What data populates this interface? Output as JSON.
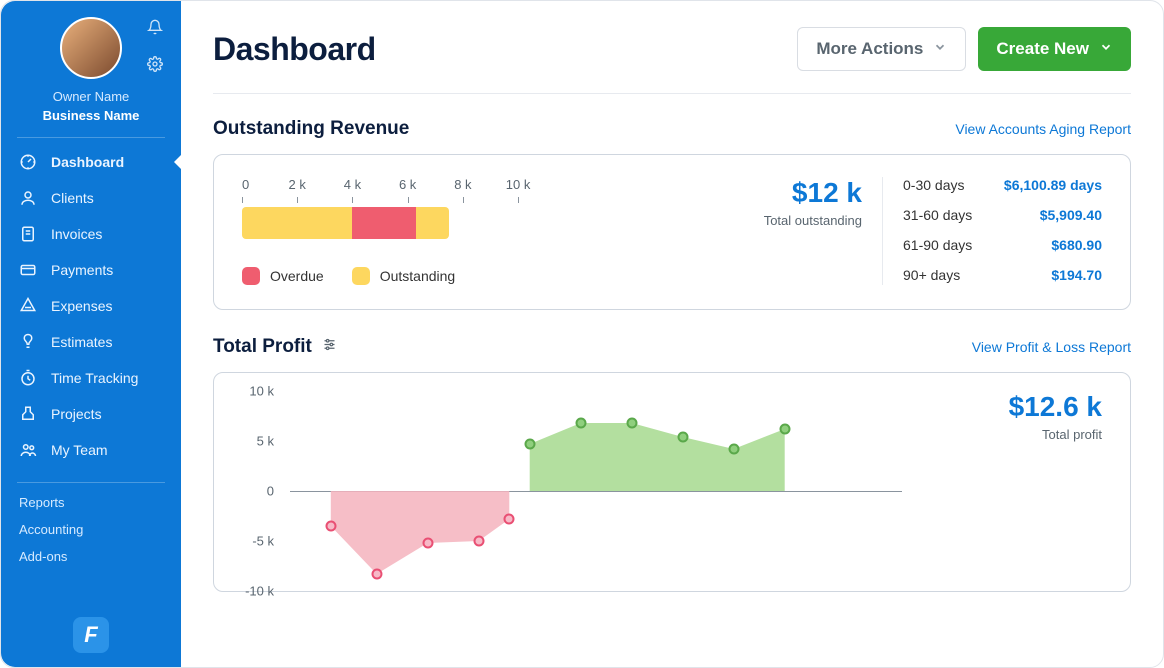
{
  "sidebar": {
    "owner_name": "Owner Name",
    "business_name": "Business Name",
    "items": [
      {
        "icon": "dashboard",
        "label": "Dashboard",
        "active": true
      },
      {
        "icon": "clients",
        "label": "Clients"
      },
      {
        "icon": "invoices",
        "label": "Invoices"
      },
      {
        "icon": "payments",
        "label": "Payments"
      },
      {
        "icon": "expenses",
        "label": "Expenses"
      },
      {
        "icon": "estimates",
        "label": "Estimates"
      },
      {
        "icon": "time",
        "label": "Time Tracking"
      },
      {
        "icon": "projects",
        "label": "Projects"
      },
      {
        "icon": "team",
        "label": "My Team"
      }
    ],
    "sub_items": [
      "Reports",
      "Accounting",
      "Add-ons"
    ]
  },
  "header": {
    "title": "Dashboard",
    "more_actions_label": "More Actions",
    "create_new_label": "Create New"
  },
  "revenue": {
    "title": "Outstanding Revenue",
    "link_label": "View Accounts Aging Report",
    "axis_ticks": [
      "0",
      "2 k",
      "4 k",
      "6 k",
      "8 k",
      "10 k"
    ],
    "axis_max_k": 10,
    "bars": {
      "outstanding_k": 7.5,
      "overdue_start_k": 4.0,
      "overdue_end_k": 6.3,
      "outstanding_color": "#fdd75f",
      "overdue_color": "#ef5d6f"
    },
    "legend": [
      {
        "label": "Overdue",
        "color": "#ef5d6f"
      },
      {
        "label": "Outstanding",
        "color": "#fdd75f"
      }
    ],
    "total_amount": "$12 k",
    "total_label": "Total outstanding",
    "aging": [
      {
        "label": "0-30 days",
        "value": "$6,100.89 days"
      },
      {
        "label": "31-60 days",
        "value": "$5,909.40"
      },
      {
        "label": "61-90 days",
        "value": "$680.90"
      },
      {
        "label": "90+ days",
        "value": "$194.70"
      }
    ]
  },
  "profit": {
    "title": "Total Profit",
    "link_label": "View Profit & Loss Report",
    "total_amount": "$12.6 k",
    "total_label": "Total profit",
    "y_ticks": [
      10,
      5,
      0,
      -5,
      -10
    ],
    "y_min": -10,
    "y_max": 10,
    "x_count": 12,
    "zero_line_extent": 1.0,
    "neg_series": {
      "color_marker_border": "#e94f73",
      "color_marker_fill": "#f7b9c7",
      "color_fill": "#f4b3bd",
      "points": [
        {
          "x": 0.8,
          "y": -3.5
        },
        {
          "x": 1.7,
          "y": -8.3
        },
        {
          "x": 2.7,
          "y": -5.2
        },
        {
          "x": 3.7,
          "y": -5.0
        },
        {
          "x": 4.3,
          "y": -2.8
        }
      ]
    },
    "pos_series": {
      "color_marker_border": "#5aa84a",
      "color_marker_fill": "#8fcf7d",
      "color_fill": "#a6d98e",
      "points": [
        {
          "x": 4.7,
          "y": 4.7
        },
        {
          "x": 5.7,
          "y": 6.8
        },
        {
          "x": 6.7,
          "y": 6.8
        },
        {
          "x": 7.7,
          "y": 5.4
        },
        {
          "x": 8.7,
          "y": 4.2
        },
        {
          "x": 9.7,
          "y": 6.2
        }
      ]
    }
  },
  "colors": {
    "brand_blue": "#0d78d6",
    "text_dark": "#0c1e3e",
    "text_muted": "#59656f",
    "green_btn": "#38a838"
  }
}
